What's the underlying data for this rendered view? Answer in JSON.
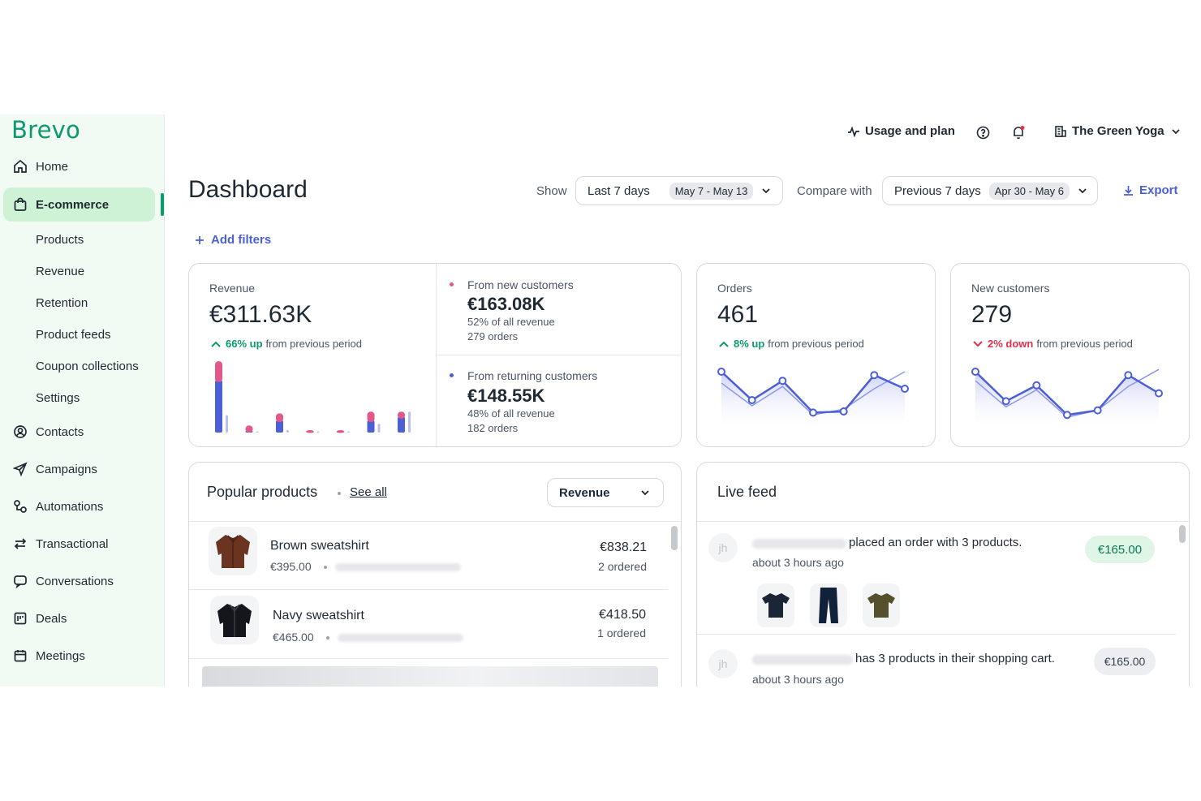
{
  "brand": {
    "name": "Brevo",
    "color": "#0b996e"
  },
  "sidebar": {
    "items": [
      {
        "id": "home",
        "label": "Home",
        "icon": "home-icon"
      },
      {
        "id": "ecommerce",
        "label": "E-commerce",
        "icon": "bag-icon",
        "active": true
      },
      {
        "id": "contacts",
        "label": "Contacts",
        "icon": "contacts-icon"
      },
      {
        "id": "campaigns",
        "label": "Campaigns",
        "icon": "send-icon"
      },
      {
        "id": "automations",
        "label": "Automations",
        "icon": "automation-icon"
      },
      {
        "id": "transactional",
        "label": "Transactional",
        "icon": "swap-icon"
      },
      {
        "id": "conversations",
        "label": "Conversations",
        "icon": "chat-icon"
      },
      {
        "id": "deals",
        "label": "Deals",
        "icon": "deals-icon"
      },
      {
        "id": "meetings",
        "label": "Meetings",
        "icon": "calendar-icon"
      }
    ],
    "subitems": [
      "Products",
      "Revenue",
      "Retention",
      "Product feeds",
      "Coupon collections",
      "Settings"
    ]
  },
  "topbar": {
    "usage_label": "Usage and plan",
    "account_label": "The Green Yoga"
  },
  "header": {
    "title": "Dashboard",
    "show_label": "Show",
    "period_value": "Last 7 days",
    "period_chip": "May 7 - May 13",
    "compare_label": "Compare with",
    "compare_value": "Previous 7 days",
    "compare_chip": "Apr 30 - May 6",
    "export_label": "Export",
    "add_filters_label": "Add filters"
  },
  "revenue": {
    "label": "Revenue",
    "value": "€311.63K",
    "trend_value": "66% up",
    "trend_text": "from previous period",
    "new_customers": {
      "title": "From new customers",
      "value": "€163.08K",
      "share": "52% of all revenue",
      "orders": "279 orders",
      "color": "#e4578a"
    },
    "returning_customers": {
      "title": "From returning customers",
      "value": "€148.55K",
      "share": "48% of all revenue",
      "orders": "182 orders",
      "color": "#4c5fd5"
    },
    "bars": {
      "new": [
        11,
        3,
        4,
        0.3,
        0.5,
        5,
        3
      ],
      "returning": [
        30,
        1,
        7,
        0.3,
        0.6,
        7,
        9
      ],
      "previous": [
        10,
        0.4,
        1.5,
        0.4,
        0.4,
        5,
        12
      ]
    }
  },
  "orders": {
    "label": "Orders",
    "value": "461",
    "trend_value": "8% up",
    "trend_text": "from previous period",
    "current": [
      70,
      45,
      62,
      34,
      35,
      67,
      55
    ],
    "previous": [
      60,
      40,
      57,
      32,
      37,
      55,
      70
    ]
  },
  "new_customers": {
    "label": "New customers",
    "value": "279",
    "trend_value": "2% down",
    "trend_text": "from previous period",
    "current": [
      70,
      44,
      58,
      32,
      36,
      67,
      51
    ],
    "previous": [
      62,
      39,
      54,
      30,
      36,
      57,
      72
    ]
  },
  "popular": {
    "title": "Popular products",
    "see_all": "See all",
    "metric": "Revenue",
    "rows": [
      {
        "name": "Brown sweatshirt",
        "price": "€395.00",
        "total": "€838.21",
        "count": "2 ordered",
        "icon": "brown-sweatshirt-icon"
      },
      {
        "name": "Navy sweatshirt",
        "price": "€465.00",
        "total": "€418.50",
        "count": "1 ordered",
        "icon": "navy-sweatshirt-icon"
      }
    ]
  },
  "feed": {
    "title": "Live feed",
    "items": [
      {
        "avatar": "jh",
        "text": "placed an order with 3 products.",
        "time": "about 3 hours ago",
        "amount": "€165.00"
      },
      {
        "avatar": "jh",
        "text": "has 3 products in their shopping cart.",
        "time": "about 3 hours ago",
        "amount": "€165.00"
      }
    ]
  },
  "colors": {
    "accent": "#4c5fd5",
    "up": "#0b996e",
    "down": "#e4314b"
  }
}
